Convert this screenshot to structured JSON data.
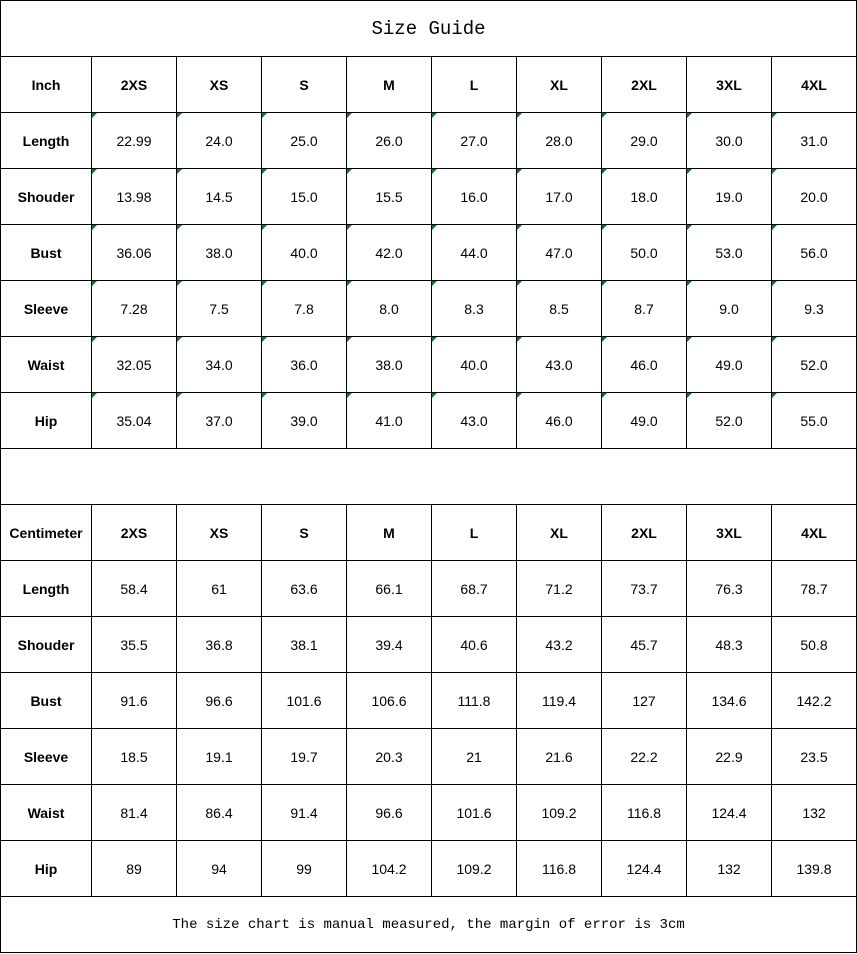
{
  "title": "Size Guide",
  "sizes": [
    "2XS",
    "XS",
    "S",
    "M",
    "L",
    "XL",
    "2XL",
    "3XL",
    "4XL"
  ],
  "tables": [
    {
      "unit": "Inch",
      "rows": [
        {
          "label": "Length",
          "values": [
            "22.99",
            "24.0",
            "25.0",
            "26.0",
            "27.0",
            "28.0",
            "29.0",
            "30.0",
            "31.0"
          ]
        },
        {
          "label": "Shouder",
          "values": [
            "13.98",
            "14.5",
            "15.0",
            "15.5",
            "16.0",
            "17.0",
            "18.0",
            "19.0",
            "20.0"
          ]
        },
        {
          "label": "Bust",
          "values": [
            "36.06",
            "38.0",
            "40.0",
            "42.0",
            "44.0",
            "47.0",
            "50.0",
            "53.0",
            "56.0"
          ]
        },
        {
          "label": "Sleeve",
          "values": [
            "7.28",
            "7.5",
            "7.8",
            "8.0",
            "8.3",
            "8.5",
            "8.7",
            "9.0",
            "9.3"
          ]
        },
        {
          "label": "Waist",
          "values": [
            "32.05",
            "34.0",
            "36.0",
            "38.0",
            "40.0",
            "43.0",
            "46.0",
            "49.0",
            "52.0"
          ]
        },
        {
          "label": "Hip",
          "values": [
            "35.04",
            "37.0",
            "39.0",
            "41.0",
            "43.0",
            "46.0",
            "49.0",
            "52.0",
            "55.0"
          ]
        }
      ]
    },
    {
      "unit": "Centimeter",
      "rows": [
        {
          "label": "Length",
          "values": [
            "58.4",
            "61",
            "63.6",
            "66.1",
            "68.7",
            "71.2",
            "73.7",
            "76.3",
            "78.7"
          ]
        },
        {
          "label": "Shouder",
          "values": [
            "35.5",
            "36.8",
            "38.1",
            "39.4",
            "40.6",
            "43.2",
            "45.7",
            "48.3",
            "50.8"
          ]
        },
        {
          "label": "Bust",
          "values": [
            "91.6",
            "96.6",
            "101.6",
            "106.6",
            "111.8",
            "119.4",
            "127",
            "134.6",
            "142.2"
          ]
        },
        {
          "label": "Sleeve",
          "values": [
            "18.5",
            "19.1",
            "19.7",
            "20.3",
            "21",
            "21.6",
            "22.2",
            "22.9",
            "23.5"
          ]
        },
        {
          "label": "Waist",
          "values": [
            "81.4",
            "86.4",
            "91.4",
            "96.6",
            "101.6",
            "109.2",
            "116.8",
            "124.4",
            "132"
          ]
        },
        {
          "label": "Hip",
          "values": [
            "89",
            "94",
            "99",
            "104.2",
            "109.2",
            "116.8",
            "124.4",
            "132",
            "139.8"
          ]
        }
      ]
    }
  ],
  "note": "The size chart is manual measured, the margin of error is 3cm",
  "colors": {
    "corner_marker": "#0a7a1e"
  }
}
